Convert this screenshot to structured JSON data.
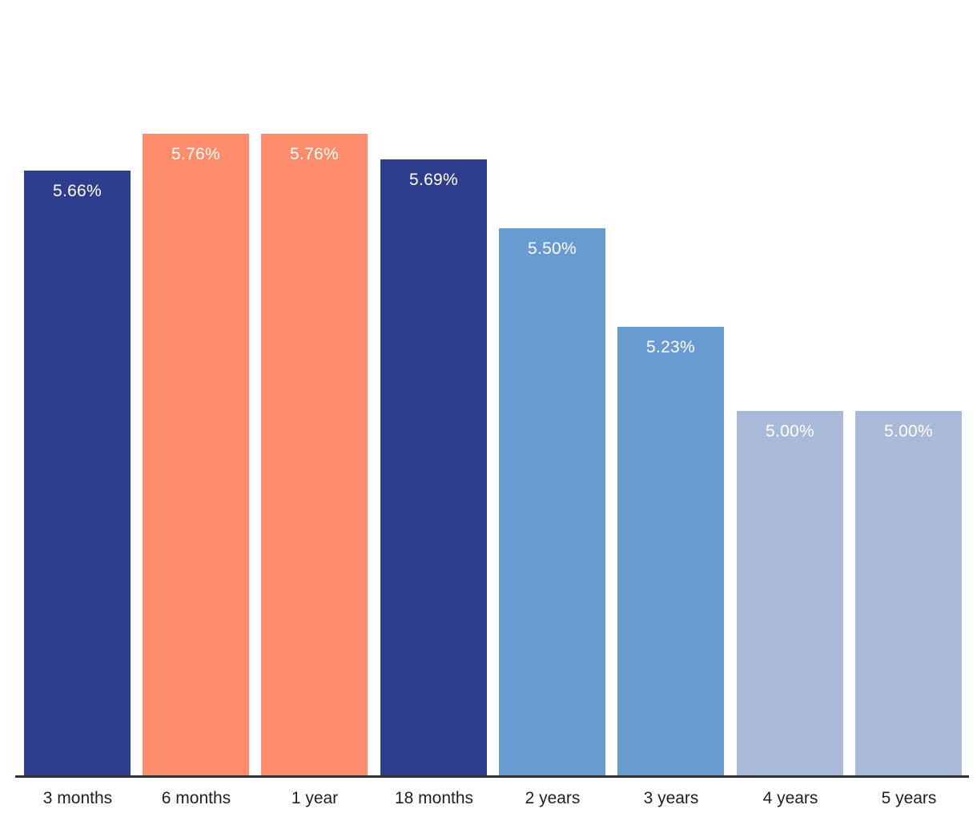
{
  "chart_data": {
    "type": "bar",
    "title": "",
    "xlabel": "",
    "ylabel": "",
    "categories": [
      "3 months",
      "6 months",
      "1 year",
      "18 months",
      "2 years",
      "3 years",
      "4 years",
      "5 years"
    ],
    "values": [
      5.66,
      5.76,
      5.76,
      5.69,
      5.5,
      5.23,
      5.0,
      5.0
    ],
    "value_labels": [
      "5.66%",
      "5.76%",
      "5.76%",
      "5.69%",
      "5.50%",
      "5.23%",
      "5.00%",
      "5.00%"
    ],
    "bar_colors": [
      "#2F3E8C",
      "#FC8C6B",
      "#FC8C6B",
      "#2F3E8C",
      "#689BD2",
      "#689BD2",
      "#A9BAD8",
      "#A9BAD8"
    ],
    "value_label_color": "#FFFFFF",
    "tick_label_color": "#1F1F1F",
    "axis_line_color": "#2F3237",
    "background_color": "#FFFFFF",
    "ylim": [
      4.0,
      6.13
    ],
    "grid": false,
    "legend": null,
    "data_labels_position": "inside-top",
    "y_axis_visible": false
  }
}
